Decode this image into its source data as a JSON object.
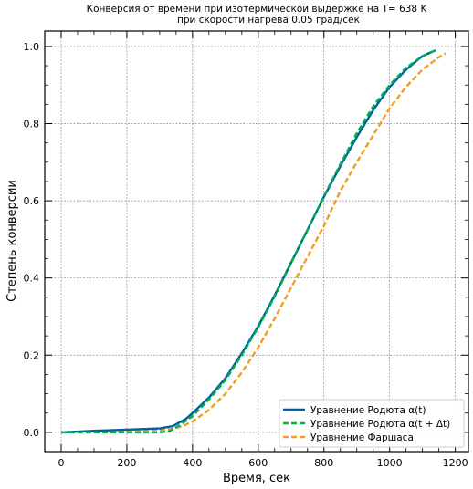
{
  "chart_data": {
    "type": "line",
    "title": "Конверсия от времени при изотермической выдержке на T= 638 K",
    "subtitle": "при скорости нагрева 0.05 град/сек",
    "xlabel": "Время, сек",
    "ylabel": "Степень конверсии",
    "xlim": [
      -50,
      1240
    ],
    "ylim": [
      -0.05,
      1.04
    ],
    "xticks": [
      0,
      200,
      400,
      600,
      800,
      1000,
      1200
    ],
    "yticks": [
      0.0,
      0.2,
      0.4,
      0.6,
      0.8,
      1.0
    ],
    "grid": true,
    "legend_position": "lower-right",
    "series": [
      {
        "name": "Уравнение Родюта α(t)",
        "color": "#005f9e",
        "style": "solid",
        "x": [
          0,
          100,
          200,
          300,
          340,
          380,
          400,
          450,
          500,
          550,
          600,
          650,
          700,
          750,
          800,
          850,
          900,
          950,
          1000,
          1050,
          1100,
          1140
        ],
        "y": [
          0.0,
          0.004,
          0.007,
          0.01,
          0.016,
          0.035,
          0.05,
          0.09,
          0.14,
          0.205,
          0.275,
          0.355,
          0.44,
          0.525,
          0.61,
          0.69,
          0.765,
          0.835,
          0.895,
          0.94,
          0.975,
          0.99
        ]
      },
      {
        "name": "Уравнение Родюта α(t + Δt)",
        "color": "#00b050",
        "style": "dashed",
        "x": [
          0,
          100,
          200,
          300,
          330,
          360,
          400,
          450,
          500,
          550,
          600,
          650,
          700,
          750,
          800,
          850,
          900,
          950,
          1000,
          1050,
          1100,
          1140
        ],
        "y": [
          0.0,
          0.0,
          0.0,
          0.0,
          0.003,
          0.018,
          0.042,
          0.085,
          0.135,
          0.2,
          0.272,
          0.352,
          0.438,
          0.525,
          0.612,
          0.695,
          0.775,
          0.845,
          0.9,
          0.945,
          0.975,
          0.99
        ]
      },
      {
        "name": "Уравнение Фаршаса",
        "color": "#f39c1f",
        "style": "dashed",
        "x": [
          0,
          100,
          200,
          300,
          340,
          370,
          400,
          450,
          500,
          550,
          600,
          650,
          700,
          750,
          800,
          850,
          900,
          950,
          1000,
          1050,
          1100,
          1150,
          1170
        ],
        "y": [
          0.0,
          0.002,
          0.004,
          0.006,
          0.009,
          0.016,
          0.028,
          0.058,
          0.1,
          0.155,
          0.22,
          0.295,
          0.375,
          0.455,
          0.535,
          0.625,
          0.7,
          0.77,
          0.84,
          0.895,
          0.94,
          0.972,
          0.982
        ]
      }
    ]
  }
}
